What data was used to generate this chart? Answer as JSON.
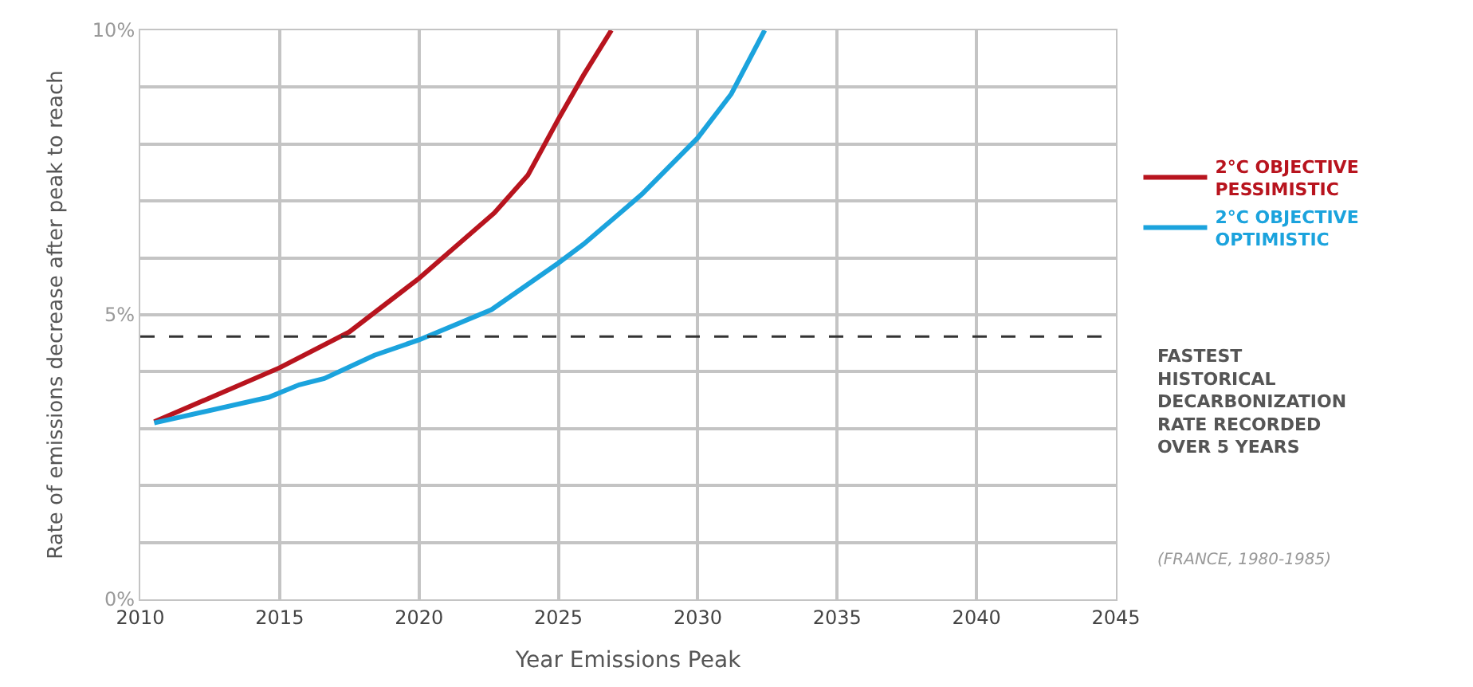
{
  "chart_data": {
    "type": "line",
    "xlabel": "Year Emissions Peak",
    "ylabel": "Rate of emissions decrease after peak to reach",
    "series": [
      {
        "name": "2°C OBJECTIVE PESSIMISTIC",
        "color": "#b8141e",
        "x": [
          2010.5,
          2015,
          2017.5,
          2020,
          2022.7,
          2023.9,
          2025,
          2025.9,
          2026.9
        ],
        "values": [
          3.12,
          4.07,
          4.7,
          5.64,
          6.79,
          7.45,
          8.44,
          9.21,
          10
        ]
      },
      {
        "name": "2°C OBJECTIVE OPTIMISTIC",
        "color": "#1ba3dd",
        "x": [
          2010.5,
          2014.6,
          2015.7,
          2016.6,
          2018.4,
          2020,
          2022.6,
          2025,
          2025.9,
          2028,
          2030,
          2031.2,
          2032.4
        ],
        "values": [
          3.1,
          3.55,
          3.77,
          3.88,
          4.29,
          4.56,
          5.09,
          5.91,
          6.24,
          7.12,
          8.11,
          8.88,
          10
        ]
      }
    ],
    "xlim": [
      2010,
      2045
    ],
    "xticks": [
      2010,
      2015,
      2020,
      2025,
      2030,
      2035,
      2040,
      2045
    ],
    "ylim": [
      0,
      10
    ],
    "yticks": [
      {
        "value": 0,
        "label": "0%"
      },
      {
        "value": 1,
        "label": null
      },
      {
        "value": 2,
        "label": null
      },
      {
        "value": 3,
        "label": null
      },
      {
        "value": 4,
        "label": null
      },
      {
        "value": 5,
        "label": "5%"
      },
      {
        "value": 6,
        "label": null
      },
      {
        "value": 7,
        "label": null
      },
      {
        "value": 8,
        "label": null
      },
      {
        "value": 9,
        "label": null
      },
      {
        "value": 10,
        "label": "10%"
      }
    ],
    "ref_lines": [
      {
        "axis": "y",
        "value": 4.62,
        "label": "FASTEST HISTORICAL DECARBONIZATION RATE RECORDED OVER 5 YEARS",
        "color": "#333333",
        "line_style": "dashed"
      }
    ],
    "annotations": [
      "(FRANCE, 1980-1985)"
    ],
    "grid": true,
    "legend": "right",
    "marker": "none",
    "line_style": "solid"
  }
}
